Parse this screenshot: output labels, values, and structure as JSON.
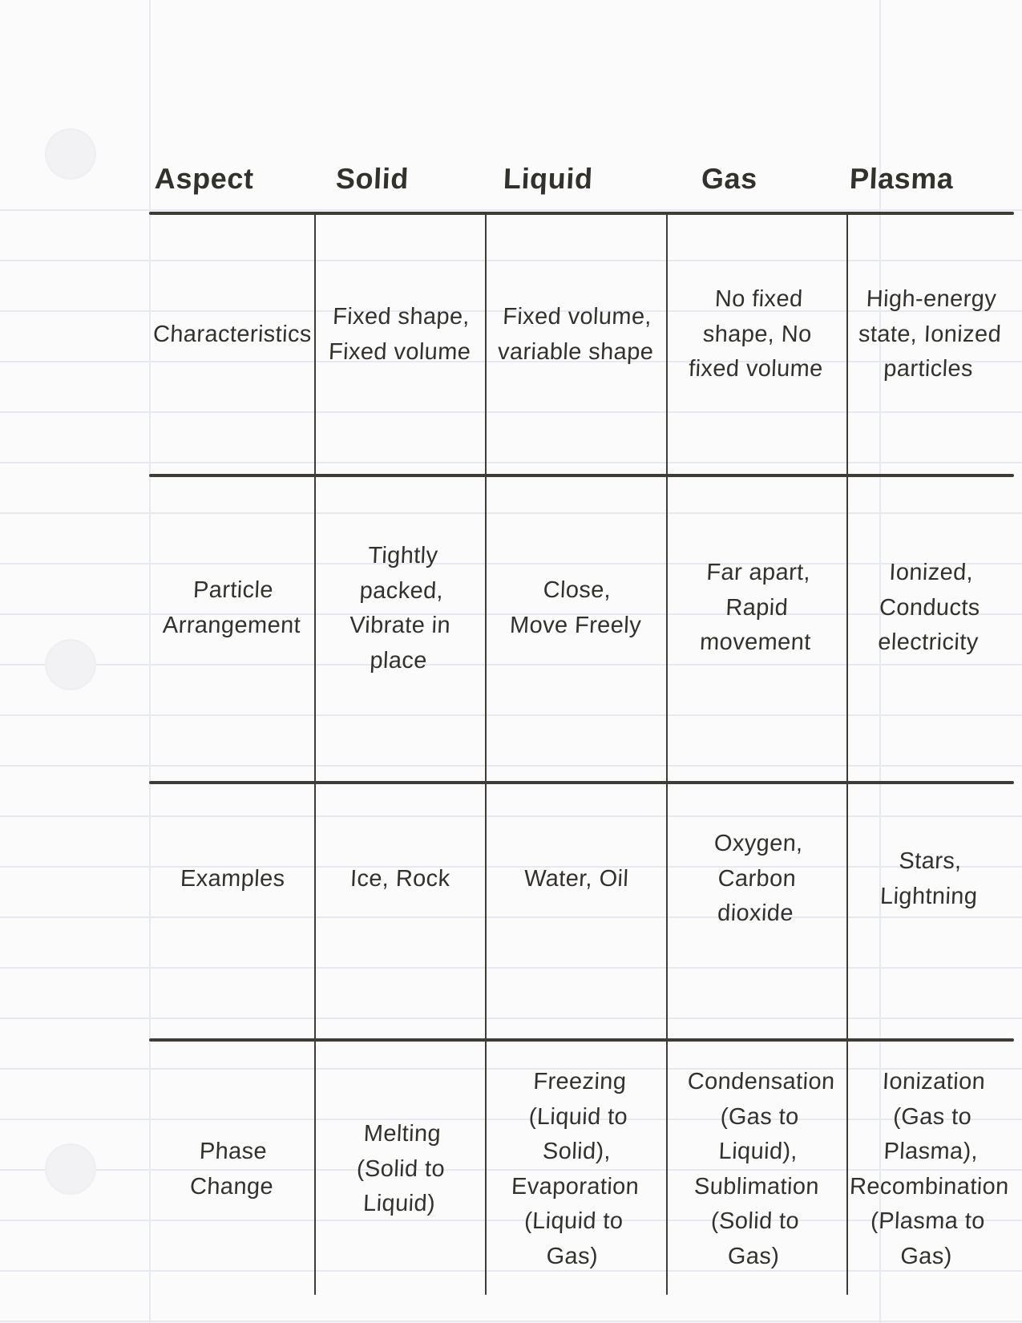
{
  "colors": {
    "paper": "#fbfbfc",
    "rule": "#e7e9f0",
    "holefill": "#f2f2f5",
    "tableline": "#3f3c38",
    "ink": "#33312c"
  },
  "table": {
    "columns": [
      "Aspect",
      "Solid",
      "Liquid",
      "Gas",
      "Plasma"
    ],
    "rows": [
      {
        "aspect": "Characteristics",
        "solid": "Fixed shape,\nFixed volume",
        "liquid": "Fixed volume,\nvariable shape",
        "gas": "No fixed\nshape, No\nfixed volume",
        "plasma": "High-energy\nstate, Ionized\nparticles"
      },
      {
        "aspect": "Particle\nArrangement",
        "solid": "Tightly\npacked,\nVibrate in\nplace",
        "liquid": "Close,\nMove Freely",
        "gas": "Far apart,\nRapid\nmovement",
        "plasma": "Ionized,\nConducts\nelectricity"
      },
      {
        "aspect": "Examples",
        "solid": "Ice, Rock",
        "liquid": "Water, Oil",
        "gas": "Oxygen,\nCarbon\ndioxide",
        "plasma": "Stars,\nLightning"
      },
      {
        "aspect": "Phase\nChange",
        "solid": "Melting\n(Solid to\nLiquid)",
        "liquid": "Freezing\n(Liquid to\nSolid),\nEvaporation\n(Liquid to\nGas)",
        "gas": "Condensation\n(Gas to\nLiquid),\nSublimation\n(Solid to\nGas)",
        "plasma": "Ionization\n(Gas to\nPlasma),\nRecombination\n(Plasma to\nGas)"
      }
    ]
  }
}
